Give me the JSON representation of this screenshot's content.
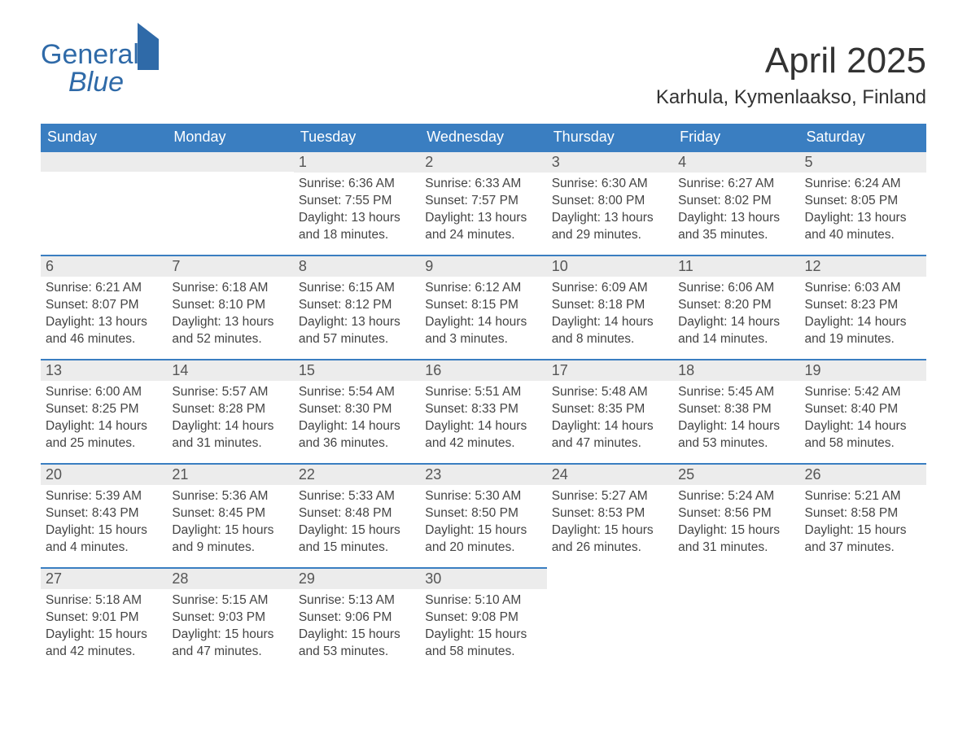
{
  "logo": {
    "line1": "General",
    "line2": "Blue"
  },
  "title": "April 2025",
  "location": "Karhula, Kymenlaakso, Finland",
  "colors": {
    "header_bg": "#3a7ec1",
    "header_text": "#ffffff",
    "daynum_bg": "#ececec",
    "daynum_border": "#3a7ec1",
    "body_text": "#444444",
    "logo_color": "#2f6aa8",
    "page_bg": "#ffffff"
  },
  "typography": {
    "title_fontsize": 44,
    "location_fontsize": 24,
    "weekday_fontsize": 18,
    "daynum_fontsize": 18,
    "cell_fontsize": 15.5,
    "font_family": "Arial"
  },
  "layout": {
    "type": "table",
    "columns": 7,
    "rows": 5,
    "first_weekday": "Sunday",
    "month_start_day_index": 2
  },
  "weekdays": [
    "Sunday",
    "Monday",
    "Tuesday",
    "Wednesday",
    "Thursday",
    "Friday",
    "Saturday"
  ],
  "days": [
    {
      "n": 1,
      "sunrise": "6:36 AM",
      "sunset": "7:55 PM",
      "daylight": "13 hours and 18 minutes."
    },
    {
      "n": 2,
      "sunrise": "6:33 AM",
      "sunset": "7:57 PM",
      "daylight": "13 hours and 24 minutes."
    },
    {
      "n": 3,
      "sunrise": "6:30 AM",
      "sunset": "8:00 PM",
      "daylight": "13 hours and 29 minutes."
    },
    {
      "n": 4,
      "sunrise": "6:27 AM",
      "sunset": "8:02 PM",
      "daylight": "13 hours and 35 minutes."
    },
    {
      "n": 5,
      "sunrise": "6:24 AM",
      "sunset": "8:05 PM",
      "daylight": "13 hours and 40 minutes."
    },
    {
      "n": 6,
      "sunrise": "6:21 AM",
      "sunset": "8:07 PM",
      "daylight": "13 hours and 46 minutes."
    },
    {
      "n": 7,
      "sunrise": "6:18 AM",
      "sunset": "8:10 PM",
      "daylight": "13 hours and 52 minutes."
    },
    {
      "n": 8,
      "sunrise": "6:15 AM",
      "sunset": "8:12 PM",
      "daylight": "13 hours and 57 minutes."
    },
    {
      "n": 9,
      "sunrise": "6:12 AM",
      "sunset": "8:15 PM",
      "daylight": "14 hours and 3 minutes."
    },
    {
      "n": 10,
      "sunrise": "6:09 AM",
      "sunset": "8:18 PM",
      "daylight": "14 hours and 8 minutes."
    },
    {
      "n": 11,
      "sunrise": "6:06 AM",
      "sunset": "8:20 PM",
      "daylight": "14 hours and 14 minutes."
    },
    {
      "n": 12,
      "sunrise": "6:03 AM",
      "sunset": "8:23 PM",
      "daylight": "14 hours and 19 minutes."
    },
    {
      "n": 13,
      "sunrise": "6:00 AM",
      "sunset": "8:25 PM",
      "daylight": "14 hours and 25 minutes."
    },
    {
      "n": 14,
      "sunrise": "5:57 AM",
      "sunset": "8:28 PM",
      "daylight": "14 hours and 31 minutes."
    },
    {
      "n": 15,
      "sunrise": "5:54 AM",
      "sunset": "8:30 PM",
      "daylight": "14 hours and 36 minutes."
    },
    {
      "n": 16,
      "sunrise": "5:51 AM",
      "sunset": "8:33 PM",
      "daylight": "14 hours and 42 minutes."
    },
    {
      "n": 17,
      "sunrise": "5:48 AM",
      "sunset": "8:35 PM",
      "daylight": "14 hours and 47 minutes."
    },
    {
      "n": 18,
      "sunrise": "5:45 AM",
      "sunset": "8:38 PM",
      "daylight": "14 hours and 53 minutes."
    },
    {
      "n": 19,
      "sunrise": "5:42 AM",
      "sunset": "8:40 PM",
      "daylight": "14 hours and 58 minutes."
    },
    {
      "n": 20,
      "sunrise": "5:39 AM",
      "sunset": "8:43 PM",
      "daylight": "15 hours and 4 minutes."
    },
    {
      "n": 21,
      "sunrise": "5:36 AM",
      "sunset": "8:45 PM",
      "daylight": "15 hours and 9 minutes."
    },
    {
      "n": 22,
      "sunrise": "5:33 AM",
      "sunset": "8:48 PM",
      "daylight": "15 hours and 15 minutes."
    },
    {
      "n": 23,
      "sunrise": "5:30 AM",
      "sunset": "8:50 PM",
      "daylight": "15 hours and 20 minutes."
    },
    {
      "n": 24,
      "sunrise": "5:27 AM",
      "sunset": "8:53 PM",
      "daylight": "15 hours and 26 minutes."
    },
    {
      "n": 25,
      "sunrise": "5:24 AM",
      "sunset": "8:56 PM",
      "daylight": "15 hours and 31 minutes."
    },
    {
      "n": 26,
      "sunrise": "5:21 AM",
      "sunset": "8:58 PM",
      "daylight": "15 hours and 37 minutes."
    },
    {
      "n": 27,
      "sunrise": "5:18 AM",
      "sunset": "9:01 PM",
      "daylight": "15 hours and 42 minutes."
    },
    {
      "n": 28,
      "sunrise": "5:15 AM",
      "sunset": "9:03 PM",
      "daylight": "15 hours and 47 minutes."
    },
    {
      "n": 29,
      "sunrise": "5:13 AM",
      "sunset": "9:06 PM",
      "daylight": "15 hours and 53 minutes."
    },
    {
      "n": 30,
      "sunrise": "5:10 AM",
      "sunset": "9:08 PM",
      "daylight": "15 hours and 58 minutes."
    }
  ],
  "labels": {
    "sunrise_prefix": "Sunrise: ",
    "sunset_prefix": "Sunset: ",
    "daylight_prefix": "Daylight: "
  }
}
